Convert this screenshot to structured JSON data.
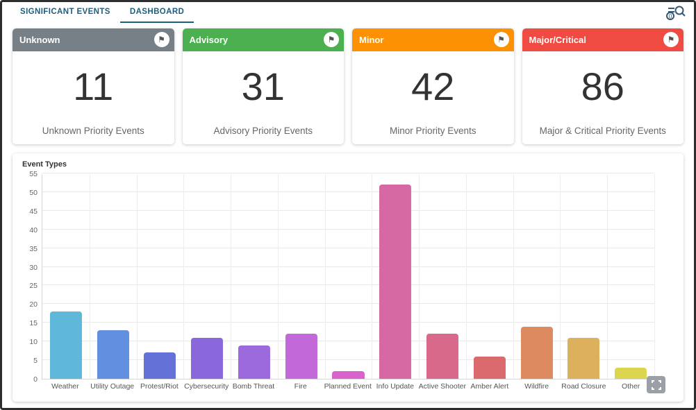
{
  "tabs": {
    "items": [
      {
        "label": "SIGNIFICANT EVENTS",
        "active": false
      },
      {
        "label": "DASHBOARD",
        "active": true
      }
    ]
  },
  "toolbar": {
    "search_badge": "0"
  },
  "cards": [
    {
      "title": "Unknown",
      "value": "11",
      "label": "Unknown Priority Events",
      "color": "#788087"
    },
    {
      "title": "Advisory",
      "value": "31",
      "label": "Advisory Priority Events",
      "color": "#4caf50"
    },
    {
      "title": "Minor",
      "value": "42",
      "label": "Minor Priority Events",
      "color": "#fb9103"
    },
    {
      "title": "Major/Critical",
      "value": "86",
      "label": "Major & Critical Priority Events",
      "color": "#ef4b42"
    }
  ],
  "chart_data": {
    "type": "bar",
    "title": "Event Types",
    "categories": [
      "Weather",
      "Utility Outage",
      "Protest/Riot",
      "Cybersecurity",
      "Bomb Threat",
      "Fire",
      "Planned Event",
      "Info Update",
      "Active Shooter",
      "Amber Alert",
      "Wildfire",
      "Road Closure",
      "Other"
    ],
    "values": [
      18,
      13,
      7,
      11,
      9,
      12,
      2,
      52,
      12,
      6,
      14,
      11,
      3
    ],
    "colors": [
      "#5fb7d9",
      "#6290de",
      "#6472d8",
      "#8a68dc",
      "#9d6ade",
      "#c368d9",
      "#d962cd",
      "#d668a4",
      "#d9698a",
      "#da6a6d",
      "#de8a61",
      "#dcb05c",
      "#dcd64f"
    ],
    "xlabel": "",
    "ylabel": "",
    "ylim": [
      0,
      55
    ],
    "ytick_step": 5,
    "grid": "both",
    "legend": "none"
  }
}
